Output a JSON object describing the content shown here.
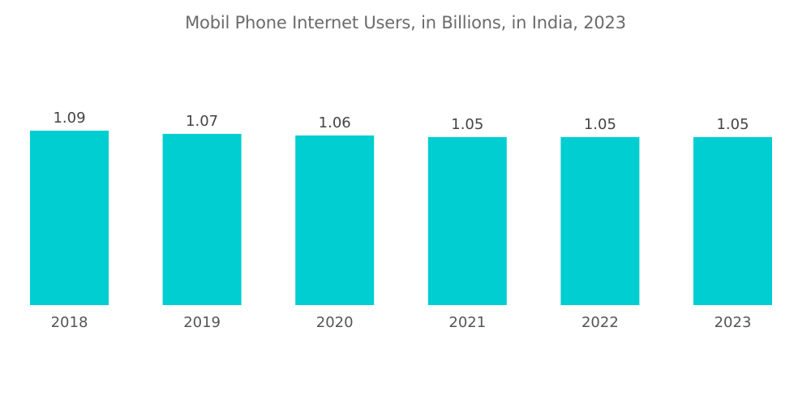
{
  "chart_data": {
    "type": "bar",
    "title": "Mobil Phone Internet Users, in Billions, in India, 2023",
    "categories": [
      "2018",
      "2019",
      "2020",
      "2021",
      "2022",
      "2023"
    ],
    "values": [
      1.09,
      1.07,
      1.06,
      1.05,
      1.05,
      1.05
    ],
    "data_labels": [
      "1.09",
      "1.07",
      "1.06",
      "1.05",
      "1.05",
      "1.05"
    ],
    "xlabel": "",
    "ylabel": "",
    "ylim": [
      0,
      1.09
    ],
    "grid": false,
    "legend": "none",
    "bar_color": "#00CED1"
  }
}
